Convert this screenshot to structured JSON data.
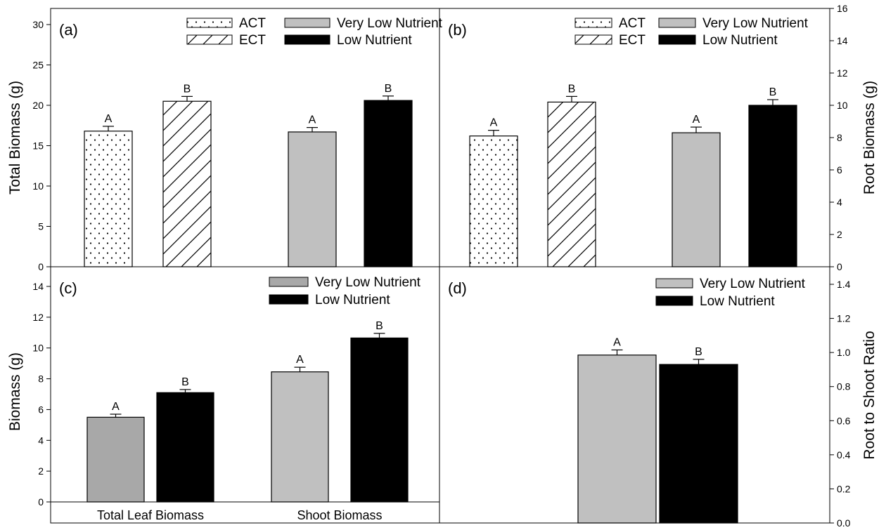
{
  "chart_data": [
    {
      "panel": "(a)",
      "type": "bar",
      "ylabel": "Total Biomass (g)",
      "ylim": [
        0,
        30
      ],
      "yticks": [
        "0",
        "5",
        "10",
        "15",
        "20",
        "25",
        "30"
      ],
      "yaxis_side": "left",
      "legend": [
        {
          "name": "ACT",
          "pattern": "dots"
        },
        {
          "name": "ECT",
          "pattern": "hatch"
        },
        {
          "name": "Very Low Nutrient",
          "pattern": "grey"
        },
        {
          "name": "Low Nutrient",
          "pattern": "black"
        }
      ],
      "legend_position": "top-right",
      "bars": [
        {
          "series": "ACT",
          "value": 16.8,
          "error": 0.6,
          "letter": "A"
        },
        {
          "series": "ECT",
          "value": 20.5,
          "error": 0.6,
          "letter": "B"
        },
        {
          "series": "Very Low Nutrient",
          "value": 16.7,
          "error": 0.55,
          "letter": "A"
        },
        {
          "series": "Low Nutrient",
          "value": 20.6,
          "error": 0.55,
          "letter": "B"
        }
      ]
    },
    {
      "panel": "(b)",
      "type": "bar",
      "ylabel": "Root Biomass (g)",
      "ylim": [
        0,
        16
      ],
      "yticks": [
        "0",
        "2",
        "4",
        "6",
        "8",
        "10",
        "12",
        "14",
        "16"
      ],
      "yaxis_side": "right",
      "legend": [
        {
          "name": "ACT",
          "pattern": "dots"
        },
        {
          "name": "ECT",
          "pattern": "hatch"
        },
        {
          "name": "Very Low Nutrient",
          "pattern": "grey"
        },
        {
          "name": "Low Nutrient",
          "pattern": "black"
        }
      ],
      "legend_position": "top-right",
      "bars": [
        {
          "series": "ACT",
          "value": 8.1,
          "error": 0.35,
          "letter": "A"
        },
        {
          "series": "ECT",
          "value": 10.2,
          "error": 0.35,
          "letter": "B"
        },
        {
          "series": "Very Low Nutrient",
          "value": 8.3,
          "error": 0.35,
          "letter": "A"
        },
        {
          "series": "Low Nutrient",
          "value": 10.0,
          "error": 0.35,
          "letter": "B"
        }
      ]
    },
    {
      "panel": "(c)",
      "type": "bar",
      "ylabel": "Biomass (g)",
      "ylim": [
        -1,
        15
      ],
      "yticks": [
        "0",
        "2",
        "4",
        "6",
        "8",
        "10",
        "12",
        "14"
      ],
      "yaxis_side": "left",
      "categories": [
        "Total Leaf Biomass",
        "Shoot Biomass"
      ],
      "legend": [
        {
          "name": "Very Low Nutrient",
          "pattern": "darkgrey"
        },
        {
          "name": "Low Nutrient",
          "pattern": "black"
        }
      ],
      "legend_position": "top-right",
      "bars": [
        {
          "category": "Total Leaf Biomass",
          "series": "Very Low Nutrient",
          "value": 5.5,
          "error": 0.2,
          "letter": "A",
          "pattern": "darkgrey"
        },
        {
          "category": "Total Leaf Biomass",
          "series": "Low Nutrient",
          "value": 7.1,
          "error": 0.2,
          "letter": "B",
          "pattern": "black"
        },
        {
          "category": "Shoot Biomass",
          "series": "Very Low Nutrient",
          "value": 8.45,
          "error": 0.3,
          "letter": "A",
          "pattern": "grey"
        },
        {
          "category": "Shoot Biomass",
          "series": "Low Nutrient",
          "value": 10.65,
          "error": 0.3,
          "letter": "B",
          "pattern": "black"
        }
      ]
    },
    {
      "panel": "(d)",
      "type": "bar",
      "ylabel": "Root to Shoot Ratio",
      "ylim": [
        0,
        1.4
      ],
      "yticks": [
        "0.0",
        "0.2",
        "0.4",
        "0.6",
        "0.8",
        "1.0",
        "1.2",
        "1.4"
      ],
      "yaxis_side": "right",
      "legend": [
        {
          "name": "Very Low Nutrient",
          "pattern": "grey"
        },
        {
          "name": "Low Nutrient",
          "pattern": "black"
        }
      ],
      "legend_position": "top-right",
      "bars": [
        {
          "series": "Very Low Nutrient",
          "value": 0.985,
          "error": 0.03,
          "letter": "A"
        },
        {
          "series": "Low Nutrient",
          "value": 0.93,
          "error": 0.03,
          "letter": "B"
        }
      ]
    }
  ],
  "colors": {
    "grey": "#c0c0c0",
    "darkgrey": "#a8a8a8",
    "black": "#000000"
  }
}
